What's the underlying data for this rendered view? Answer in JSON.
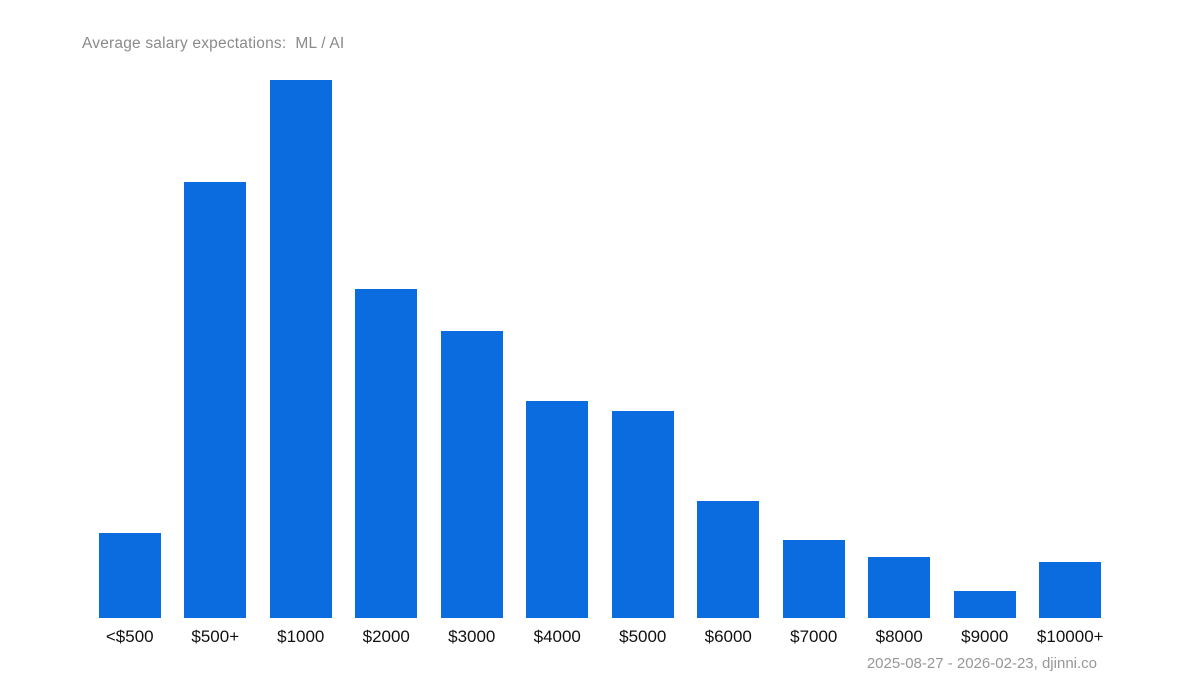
{
  "title": "Average salary expectations:  ML / AI",
  "footer": "2025-08-27 - 2026-02-23, djinni.co",
  "colors": {
    "bar": "#0b6cdf",
    "title_text": "#8b8b8b",
    "label_text": "#111111",
    "footer_text": "#979797",
    "background": "#ffffff"
  },
  "chart_data": {
    "type": "bar",
    "title": "Average salary expectations:  ML / AI",
    "categories": [
      "<$500",
      "$500+",
      "$1000",
      "$2000",
      "$3000",
      "$4000",
      "$5000",
      "$6000",
      "$7000",
      "$8000",
      "$9000",
      "$10000+"
    ],
    "values": [
      3.5,
      17.9,
      22.1,
      13.5,
      11.8,
      8.9,
      8.5,
      4.8,
      3.2,
      2.5,
      1.1,
      2.3
    ],
    "values_note": "estimated share of candidates, percent; no y-axis shown",
    "xlabel": "",
    "ylabel": "",
    "ylim": [
      0,
      22.1
    ],
    "grid": false,
    "legend": "none",
    "annotation": "2025-08-27 - 2026-02-23, djinni.co"
  }
}
